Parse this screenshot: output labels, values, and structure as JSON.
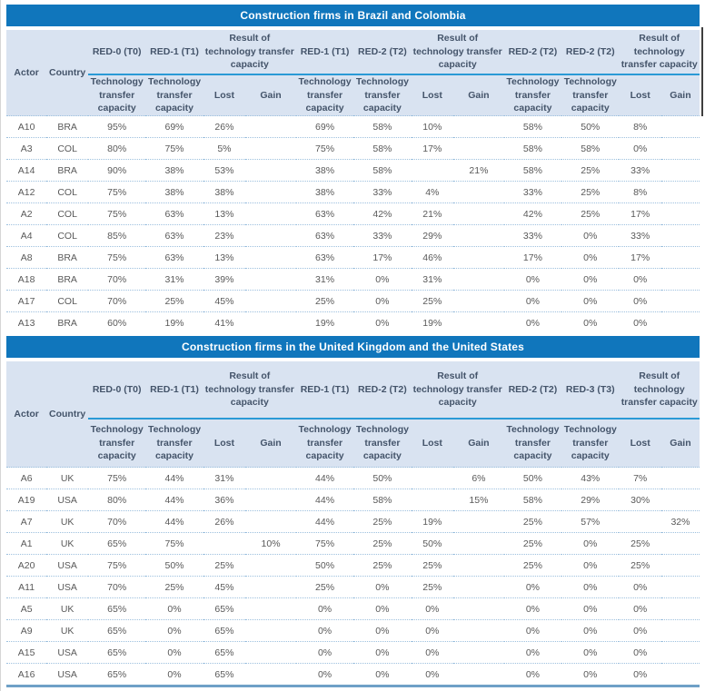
{
  "document": {
    "tables": [
      {
        "title": "Construction firms in Brazil and Colombia",
        "actor_header": "Actor",
        "country_header": "Country",
        "period_headers": [
          "RED-0 (T0)",
          "RED-1 (T1)",
          "Result of technology transfer capacity",
          "RED-1 (T1)",
          "RED-2 (T2)",
          "Result of technology transfer capacity",
          "RED-2 (T2)",
          "RED-2 (T2)",
          "Result of technology transfer capacity"
        ],
        "sub_headers": [
          "Technology transfer capacity",
          "Technology transfer capacity",
          "Lost",
          "Gain",
          "Technology transfer capacity",
          "Technology transfer capacity",
          "Lost",
          "Gain",
          "Technology transfer capacity",
          "Technology transfer capacity",
          "Lost",
          "Gain"
        ],
        "rows": [
          {
            "actor": "A10",
            "country": "BRA",
            "values": [
              "95%",
              "69%",
              "26%",
              "",
              "69%",
              "58%",
              "10%",
              "",
              "58%",
              "50%",
              "8%",
              ""
            ]
          },
          {
            "actor": "A3",
            "country": "COL",
            "values": [
              "80%",
              "75%",
              "5%",
              "",
              "75%",
              "58%",
              "17%",
              "",
              "58%",
              "58%",
              "0%",
              ""
            ]
          },
          {
            "actor": "A14",
            "country": "BRA",
            "values": [
              "90%",
              "38%",
              "53%",
              "",
              "38%",
              "58%",
              "",
              "21%",
              "58%",
              "25%",
              "33%",
              ""
            ]
          },
          {
            "actor": "A12",
            "country": "COL",
            "values": [
              "75%",
              "38%",
              "38%",
              "",
              "38%",
              "33%",
              "4%",
              "",
              "33%",
              "25%",
              "8%",
              ""
            ]
          },
          {
            "actor": "A2",
            "country": "COL",
            "values": [
              "75%",
              "63%",
              "13%",
              "",
              "63%",
              "42%",
              "21%",
              "",
              "42%",
              "25%",
              "17%",
              ""
            ]
          },
          {
            "actor": "A4",
            "country": "COL",
            "values": [
              "85%",
              "63%",
              "23%",
              "",
              "63%",
              "33%",
              "29%",
              "",
              "33%",
              "0%",
              "33%",
              ""
            ]
          },
          {
            "actor": "A8",
            "country": "BRA",
            "values": [
              "75%",
              "63%",
              "13%",
              "",
              "63%",
              "17%",
              "46%",
              "",
              "17%",
              "0%",
              "17%",
              ""
            ]
          },
          {
            "actor": "A18",
            "country": "BRA",
            "values": [
              "70%",
              "31%",
              "39%",
              "",
              "31%",
              "0%",
              "31%",
              "",
              "0%",
              "0%",
              "0%",
              ""
            ]
          },
          {
            "actor": "A17",
            "country": "COL",
            "values": [
              "70%",
              "25%",
              "45%",
              "",
              "25%",
              "0%",
              "25%",
              "",
              "0%",
              "0%",
              "0%",
              ""
            ]
          },
          {
            "actor": "A13",
            "country": "BRA",
            "values": [
              "60%",
              "19%",
              "41%",
              "",
              "19%",
              "0%",
              "19%",
              "",
              "0%",
              "0%",
              "0%",
              ""
            ]
          }
        ]
      },
      {
        "title": "Construction firms in the United Kingdom and the United States",
        "actor_header": "Actor",
        "country_header": "Country",
        "period_headers": [
          "RED-0 (T0)",
          "RED-1 (T1)",
          "Result of technology transfer capacity",
          "RED-1 (T1)",
          "RED-2 (T2)",
          "Result of technology transfer capacity",
          "RED-2 (T2)",
          "RED-3 (T3)",
          "Result of technology transfer capacity"
        ],
        "sub_headers": [
          "Technology transfer capacity",
          "Technology transfer capacity",
          "Lost",
          "Gain",
          "Technology transfer capacity",
          "Technology transfer capacity",
          "Lost",
          "Gain",
          "Technology transfer capacity",
          "Technology transfer capacity",
          "Lost",
          "Gain"
        ],
        "rows": [
          {
            "actor": "A6",
            "country": "UK",
            "values": [
              "75%",
              "44%",
              "31%",
              "",
              "44%",
              "50%",
              "",
              "6%",
              "50%",
              "43%",
              "7%",
              ""
            ]
          },
          {
            "actor": "A19",
            "country": "USA",
            "values": [
              "80%",
              "44%",
              "36%",
              "",
              "44%",
              "58%",
              "",
              "15%",
              "58%",
              "29%",
              "30%",
              ""
            ]
          },
          {
            "actor": "A7",
            "country": "UK",
            "values": [
              "70%",
              "44%",
              "26%",
              "",
              "44%",
              "25%",
              "19%",
              "",
              "25%",
              "57%",
              "",
              "32%"
            ]
          },
          {
            "actor": "A1",
            "country": "UK",
            "values": [
              "65%",
              "75%",
              "",
              "10%",
              "75%",
              "25%",
              "50%",
              "",
              "25%",
              "0%",
              "25%",
              ""
            ]
          },
          {
            "actor": "A20",
            "country": "USA",
            "values": [
              "75%",
              "50%",
              "25%",
              "",
              "50%",
              "25%",
              "25%",
              "",
              "25%",
              "0%",
              "25%",
              ""
            ]
          },
          {
            "actor": "A11",
            "country": "USA",
            "values": [
              "70%",
              "25%",
              "45%",
              "",
              "25%",
              "0%",
              "25%",
              "",
              "0%",
              "0%",
              "0%",
              ""
            ]
          },
          {
            "actor": "A5",
            "country": "UK",
            "values": [
              "65%",
              "0%",
              "65%",
              "",
              "0%",
              "0%",
              "0%",
              "",
              "0%",
              "0%",
              "0%",
              ""
            ]
          },
          {
            "actor": "A9",
            "country": "UK",
            "values": [
              "65%",
              "0%",
              "65%",
              "",
              "0%",
              "0%",
              "0%",
              "",
              "0%",
              "0%",
              "0%",
              ""
            ]
          },
          {
            "actor": "A15",
            "country": "USA",
            "values": [
              "65%",
              "0%",
              "65%",
              "",
              "0%",
              "0%",
              "0%",
              "",
              "0%",
              "0%",
              "0%",
              ""
            ]
          },
          {
            "actor": "A16",
            "country": "USA",
            "values": [
              "65%",
              "0%",
              "65%",
              "",
              "0%",
              "0%",
              "0%",
              "",
              "0%",
              "0%",
              "0%",
              ""
            ]
          }
        ]
      }
    ]
  },
  "colors": {
    "title_bar": "#1076bc",
    "title_text": "#ffffff",
    "header_bg": "#d9e3f1",
    "header_text": "#44546a",
    "data_text": "#595959",
    "header_rule": "#2a9ad6",
    "row_divider_dotted": "#9dc0de",
    "closing_rule": "#6fa0c7"
  }
}
